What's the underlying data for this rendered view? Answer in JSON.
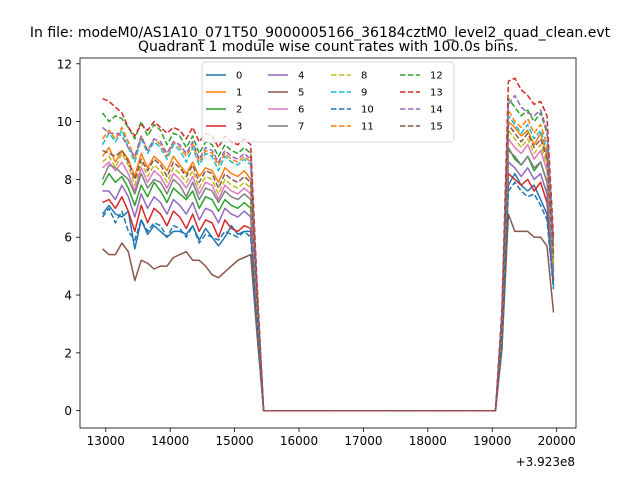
{
  "figure": {
    "suptitle": "In file: modeM0/AS1A10_071T50_9000005166_36184cztM0_level2_quad_clean.evt",
    "title": "Quadrant 1 module wise count rates with 100.0s bins."
  },
  "chart_data": {
    "type": "line",
    "title": "Quadrant 1 module wise count rates with 100.0s bins.",
    "xlabel": "",
    "ylabel": "",
    "x_offset_label": "+3.923e8",
    "xlim": [
      12600,
      20300
    ],
    "ylim": [
      -0.6,
      12.2
    ],
    "xticks": [
      13000,
      14000,
      15000,
      16000,
      17000,
      18000,
      19000,
      20000
    ],
    "xtick_labels": [
      "13000",
      "14000",
      "15000",
      "16000",
      "17000",
      "18000",
      "19000",
      "20000"
    ],
    "yticks": [
      0,
      2,
      4,
      6,
      8,
      10,
      12
    ],
    "ytick_labels": [
      "0",
      "2",
      "4",
      "6",
      "8",
      "10",
      "12"
    ],
    "grid": false,
    "legend_position": "top-center",
    "legend_columns": 4,
    "x": [
      12950,
      13050,
      13150,
      13250,
      13350,
      13450,
      13550,
      13650,
      13750,
      13850,
      13950,
      14050,
      14150,
      14250,
      14350,
      14450,
      14550,
      14650,
      14750,
      14850,
      14950,
      15050,
      15150,
      15250,
      15350,
      15450,
      15550,
      15650,
      15750,
      15850,
      15950,
      16050,
      16150,
      16250,
      16350,
      16450,
      16550,
      16650,
      16750,
      16850,
      16950,
      17050,
      17150,
      17250,
      17350,
      17450,
      17550,
      17650,
      17750,
      17850,
      17950,
      18050,
      18150,
      18250,
      18350,
      18450,
      18550,
      18650,
      18750,
      18850,
      18950,
      19050,
      19150,
      19250,
      19350,
      19450,
      19550,
      19650,
      19750,
      19850,
      19950
    ],
    "series": [
      {
        "name": "0",
        "color": "#1f77b4",
        "dash": "solid",
        "values": [
          6.8,
          7.1,
          6.8,
          6.7,
          6.9,
          5.6,
          6.6,
          6.1,
          6.4,
          6.2,
          6.0,
          6.2,
          6.2,
          6.1,
          6.4,
          5.9,
          6.3,
          6.0,
          5.7,
          6.0,
          6.4,
          6.1,
          6.2,
          6.2,
          3.0,
          0,
          0,
          0,
          0,
          0,
          0,
          0,
          0,
          0,
          0,
          0,
          0,
          0,
          0,
          0,
          0,
          0,
          0,
          0,
          0,
          0,
          0,
          0,
          0,
          0,
          0,
          0,
          0,
          0,
          0,
          0,
          0,
          0,
          0,
          0,
          0,
          0,
          2.4,
          7.8,
          8.2,
          7.8,
          7.6,
          7.8,
          7.3,
          6.8,
          4.3
        ]
      },
      {
        "name": "1",
        "color": "#ff7f0e",
        "dash": "solid",
        "values": [
          8.8,
          9.1,
          8.6,
          9.0,
          8.7,
          8.1,
          8.9,
          8.4,
          8.8,
          8.6,
          8.3,
          8.8,
          8.5,
          8.2,
          8.6,
          8.1,
          8.4,
          8.3,
          7.9,
          8.4,
          8.2,
          8.1,
          8.3,
          8.0,
          3.8,
          0,
          0,
          0,
          0,
          0,
          0,
          0,
          0,
          0,
          0,
          0,
          0,
          0,
          0,
          0,
          0,
          0,
          0,
          0,
          0,
          0,
          0,
          0,
          0,
          0,
          0,
          0,
          0,
          0,
          0,
          0,
          0,
          0,
          0,
          0,
          0,
          0,
          2.9,
          10.0,
          9.8,
          9.5,
          9.7,
          9.2,
          9.6,
          8.8,
          5.2
        ]
      },
      {
        "name": "2",
        "color": "#2ca02c",
        "dash": "solid",
        "values": [
          7.8,
          8.2,
          7.9,
          8.1,
          7.7,
          7.1,
          7.8,
          7.4,
          7.9,
          7.6,
          7.2,
          7.7,
          7.5,
          7.3,
          7.6,
          7.0,
          7.4,
          7.3,
          6.9,
          7.3,
          7.1,
          7.0,
          7.2,
          7.0,
          3.4,
          0,
          0,
          0,
          0,
          0,
          0,
          0,
          0,
          0,
          0,
          0,
          0,
          0,
          0,
          0,
          0,
          0,
          0,
          0,
          0,
          0,
          0,
          0,
          0,
          0,
          0,
          0,
          0,
          0,
          0,
          0,
          0,
          0,
          0,
          0,
          0,
          0,
          2.7,
          9.1,
          8.7,
          8.5,
          8.8,
          8.3,
          8.6,
          7.9,
          4.8
        ]
      },
      {
        "name": "3",
        "color": "#d62728",
        "dash": "solid",
        "values": [
          7.2,
          7.3,
          7.0,
          7.4,
          6.9,
          6.2,
          7.1,
          6.5,
          7.0,
          6.8,
          6.4,
          6.9,
          6.7,
          6.3,
          6.8,
          6.2,
          6.6,
          6.5,
          6.0,
          6.6,
          6.3,
          6.2,
          6.4,
          6.3,
          3.1,
          0,
          0,
          0,
          0,
          0,
          0,
          0,
          0,
          0,
          0,
          0,
          0,
          0,
          0,
          0,
          0,
          0,
          0,
          0,
          0,
          0,
          0,
          0,
          0,
          0,
          0,
          0,
          0,
          0,
          0,
          0,
          0,
          0,
          0,
          0,
          0,
          0,
          2.5,
          8.2,
          8.0,
          7.8,
          8.0,
          7.6,
          7.9,
          7.2,
          4.5
        ]
      },
      {
        "name": "4",
        "color": "#9467bd",
        "dash": "solid",
        "values": [
          7.6,
          7.6,
          7.3,
          7.8,
          7.4,
          6.7,
          7.5,
          7.0,
          7.4,
          7.2,
          6.8,
          7.3,
          7.1,
          6.8,
          7.2,
          6.6,
          7.0,
          6.9,
          6.5,
          7.0,
          6.8,
          6.7,
          6.9,
          6.7,
          3.2,
          0,
          0,
          0,
          0,
          0,
          0,
          0,
          0,
          0,
          0,
          0,
          0,
          0,
          0,
          0,
          0,
          0,
          0,
          0,
          0,
          0,
          0,
          0,
          0,
          0,
          0,
          0,
          0,
          0,
          0,
          0,
          0,
          0,
          0,
          0,
          0,
          0,
          2.6,
          8.6,
          8.4,
          8.1,
          8.4,
          8.0,
          8.2,
          7.5,
          4.6
        ]
      },
      {
        "name": "5",
        "color": "#8c564b",
        "dash": "solid",
        "values": [
          5.6,
          5.4,
          5.4,
          5.8,
          5.5,
          4.5,
          5.2,
          5.1,
          4.9,
          5.0,
          5.0,
          5.3,
          5.4,
          5.5,
          5.2,
          5.2,
          5.0,
          4.7,
          4.6,
          4.8,
          5.0,
          5.2,
          5.3,
          5.4,
          2.6,
          0,
          0,
          0,
          0,
          0,
          0,
          0,
          0,
          0,
          0,
          0,
          0,
          0,
          0,
          0,
          0,
          0,
          0,
          0,
          0,
          0,
          0,
          0,
          0,
          0,
          0,
          0,
          0,
          0,
          0,
          0,
          0,
          0,
          0,
          0,
          0,
          0,
          2.1,
          6.8,
          6.2,
          6.2,
          6.2,
          6.0,
          6.0,
          5.7,
          3.4
        ]
      },
      {
        "name": "6",
        "color": "#e377c2",
        "dash": "solid",
        "values": [
          8.4,
          8.6,
          8.3,
          8.6,
          8.2,
          7.6,
          8.4,
          7.9,
          8.3,
          8.1,
          7.7,
          8.2,
          8.0,
          7.7,
          8.1,
          7.5,
          7.9,
          7.8,
          7.3,
          7.8,
          7.6,
          7.5,
          7.7,
          7.5,
          3.6,
          0,
          0,
          0,
          0,
          0,
          0,
          0,
          0,
          0,
          0,
          0,
          0,
          0,
          0,
          0,
          0,
          0,
          0,
          0,
          0,
          0,
          0,
          0,
          0,
          0,
          0,
          0,
          0,
          0,
          0,
          0,
          0,
          0,
          0,
          0,
          0,
          0,
          2.8,
          9.4,
          9.1,
          8.9,
          9.2,
          8.7,
          9.0,
          8.3,
          5.0
        ]
      },
      {
        "name": "7",
        "color": "#7f7f7f",
        "dash": "solid",
        "values": [
          8.0,
          8.5,
          8.4,
          8.2,
          8.0,
          7.5,
          8.2,
          7.7,
          8.0,
          7.9,
          7.5,
          8.0,
          7.8,
          7.4,
          7.9,
          7.3,
          7.7,
          7.6,
          7.2,
          7.6,
          7.4,
          7.3,
          7.5,
          7.3,
          3.5,
          0,
          0,
          0,
          0,
          0,
          0,
          0,
          0,
          0,
          0,
          0,
          0,
          0,
          0,
          0,
          0,
          0,
          0,
          0,
          0,
          0,
          0,
          0,
          0,
          0,
          0,
          0,
          0,
          0,
          0,
          0,
          0,
          0,
          0,
          0,
          0,
          0,
          2.7,
          9.0,
          8.8,
          8.5,
          8.8,
          8.4,
          8.6,
          7.9,
          4.9
        ]
      },
      {
        "name": "8",
        "color": "#bcbd22",
        "dash": "dash",
        "values": [
          8.6,
          8.8,
          8.4,
          8.9,
          8.5,
          7.8,
          8.6,
          8.1,
          8.5,
          8.3,
          7.9,
          8.4,
          8.2,
          7.9,
          8.3,
          7.7,
          8.1,
          8.0,
          7.5,
          8.0,
          7.8,
          7.7,
          7.9,
          7.7,
          3.7,
          0,
          0,
          0,
          0,
          0,
          0,
          0,
          0,
          0,
          0,
          0,
          0,
          0,
          0,
          0,
          0,
          0,
          0,
          0,
          0,
          0,
          0,
          0,
          0,
          0,
          0,
          0,
          0,
          0,
          0,
          0,
          0,
          0,
          0,
          0,
          0,
          0,
          2.9,
          9.7,
          9.4,
          9.1,
          9.4,
          8.9,
          9.2,
          8.5,
          5.1
        ]
      },
      {
        "name": "9",
        "color": "#17becf",
        "dash": "dash",
        "values": [
          9.2,
          9.6,
          9.3,
          9.7,
          9.1,
          8.6,
          9.4,
          8.9,
          9.3,
          9.1,
          8.7,
          9.2,
          9.0,
          8.6,
          9.1,
          8.5,
          8.9,
          8.8,
          8.3,
          8.8,
          8.6,
          8.5,
          8.7,
          8.5,
          4.0,
          0,
          0,
          0,
          0,
          0,
          0,
          0,
          0,
          0,
          0,
          0,
          0,
          0,
          0,
          0,
          0,
          0,
          0,
          0,
          0,
          0,
          0,
          0,
          0,
          0,
          0,
          0,
          0,
          0,
          0,
          0,
          0,
          0,
          0,
          0,
          0,
          0,
          3.1,
          10.2,
          9.9,
          9.6,
          9.9,
          9.4,
          9.7,
          9.0,
          5.4
        ]
      },
      {
        "name": "10",
        "color": "#1f77b4",
        "dash": "dash",
        "values": [
          6.7,
          7.0,
          6.5,
          6.9,
          6.2,
          5.9,
          6.6,
          6.2,
          6.5,
          6.4,
          6.0,
          6.4,
          6.3,
          6.0,
          6.4,
          5.8,
          6.1,
          6.0,
          5.9,
          6.2,
          6.1,
          6.0,
          6.2,
          6.0,
          2.9,
          0,
          0,
          0,
          0,
          0,
          0,
          0,
          0,
          0,
          0,
          0,
          0,
          0,
          0,
          0,
          0,
          0,
          0,
          0,
          0,
          0,
          0,
          0,
          0,
          0,
          0,
          0,
          0,
          0,
          0,
          0,
          0,
          0,
          0,
          0,
          0,
          0,
          2.3,
          7.6,
          7.9,
          7.6,
          7.4,
          7.5,
          7.1,
          6.6,
          4.2
        ]
      },
      {
        "name": "11",
        "color": "#ff7f0e",
        "dash": "dash",
        "values": [
          9.4,
          9.7,
          9.4,
          9.8,
          9.3,
          8.7,
          9.5,
          9.0,
          9.4,
          9.2,
          8.8,
          9.3,
          9.1,
          8.8,
          9.2,
          8.6,
          9.0,
          8.9,
          8.5,
          8.9,
          8.7,
          8.6,
          8.8,
          8.6,
          4.1,
          0,
          0,
          0,
          0,
          0,
          0,
          0,
          0,
          0,
          0,
          0,
          0,
          0,
          0,
          0,
          0,
          0,
          0,
          0,
          0,
          0,
          0,
          0,
          0,
          0,
          0,
          0,
          0,
          0,
          0,
          0,
          0,
          0,
          0,
          0,
          0,
          0,
          3.2,
          10.4,
          10.0,
          9.8,
          10.1,
          9.6,
          9.9,
          9.2,
          5.5
        ]
      },
      {
        "name": "12",
        "color": "#2ca02c",
        "dash": "dash",
        "values": [
          10.3,
          10.0,
          10.2,
          10.1,
          9.8,
          9.4,
          10.0,
          9.5,
          9.9,
          9.7,
          9.2,
          9.6,
          9.5,
          9.1,
          9.5,
          8.9,
          9.3,
          9.2,
          8.8,
          9.2,
          9.0,
          8.9,
          9.1,
          8.9,
          4.2,
          0,
          0,
          0,
          0,
          0,
          0,
          0,
          0,
          0,
          0,
          0,
          0,
          0,
          0,
          0,
          0,
          0,
          0,
          0,
          0,
          0,
          0,
          0,
          0,
          0,
          0,
          0,
          0,
          0,
          0,
          0,
          0,
          0,
          0,
          0,
          0,
          0,
          3.3,
          10.8,
          10.5,
          10.2,
          10.4,
          10.0,
          10.3,
          9.6,
          5.8
        ]
      },
      {
        "name": "13",
        "color": "#d62728",
        "dash": "dash",
        "values": [
          10.8,
          10.7,
          10.5,
          10.3,
          9.8,
          9.5,
          9.9,
          9.7,
          10.0,
          9.8,
          9.6,
          9.8,
          9.7,
          9.4,
          9.8,
          9.3,
          9.6,
          9.5,
          9.1,
          9.5,
          9.3,
          9.2,
          9.4,
          9.2,
          4.4,
          0,
          0,
          0,
          0,
          0,
          0,
          0,
          0,
          0,
          0,
          0,
          0,
          0,
          0,
          0,
          0,
          0,
          0,
          0,
          0,
          0,
          0,
          0,
          0,
          0,
          0,
          0,
          0,
          0,
          0,
          0,
          0,
          0,
          0,
          0,
          0,
          0,
          3.5,
          11.4,
          11.5,
          11.1,
          10.9,
          10.6,
          10.7,
          10.2,
          6.0
        ]
      },
      {
        "name": "14",
        "color": "#9467bd",
        "dash": "dash",
        "values": [
          9.8,
          9.6,
          9.6,
          9.5,
          9.1,
          8.8,
          9.5,
          9.0,
          9.4,
          9.3,
          8.9,
          9.3,
          9.2,
          8.9,
          9.3,
          8.7,
          9.1,
          9.0,
          8.6,
          9.0,
          8.8,
          8.7,
          8.9,
          8.7,
          4.1,
          0,
          0,
          0,
          0,
          0,
          0,
          0,
          0,
          0,
          0,
          0,
          0,
          0,
          0,
          0,
          0,
          0,
          0,
          0,
          0,
          0,
          0,
          0,
          0,
          0,
          0,
          0,
          0,
          0,
          0,
          0,
          0,
          0,
          0,
          0,
          0,
          0,
          3.3,
          10.6,
          10.9,
          10.5,
          10.3,
          10.2,
          10.4,
          9.7,
          5.7
        ]
      },
      {
        "name": "15",
        "color": "#8c564b",
        "dash": "dash",
        "values": [
          9.0,
          8.9,
          8.8,
          9.0,
          8.6,
          8.0,
          8.7,
          8.3,
          8.7,
          8.5,
          8.1,
          8.6,
          8.4,
          8.1,
          8.5,
          7.9,
          8.3,
          8.2,
          7.7,
          8.2,
          8.0,
          7.9,
          8.1,
          7.9,
          3.8,
          0,
          0,
          0,
          0,
          0,
          0,
          0,
          0,
          0,
          0,
          0,
          0,
          0,
          0,
          0,
          0,
          0,
          0,
          0,
          0,
          0,
          0,
          0,
          0,
          0,
          0,
          0,
          0,
          0,
          0,
          0,
          0,
          0,
          0,
          0,
          0,
          0,
          3.0,
          9.9,
          9.6,
          9.3,
          9.6,
          9.1,
          9.4,
          8.7,
          5.3
        ]
      }
    ]
  }
}
